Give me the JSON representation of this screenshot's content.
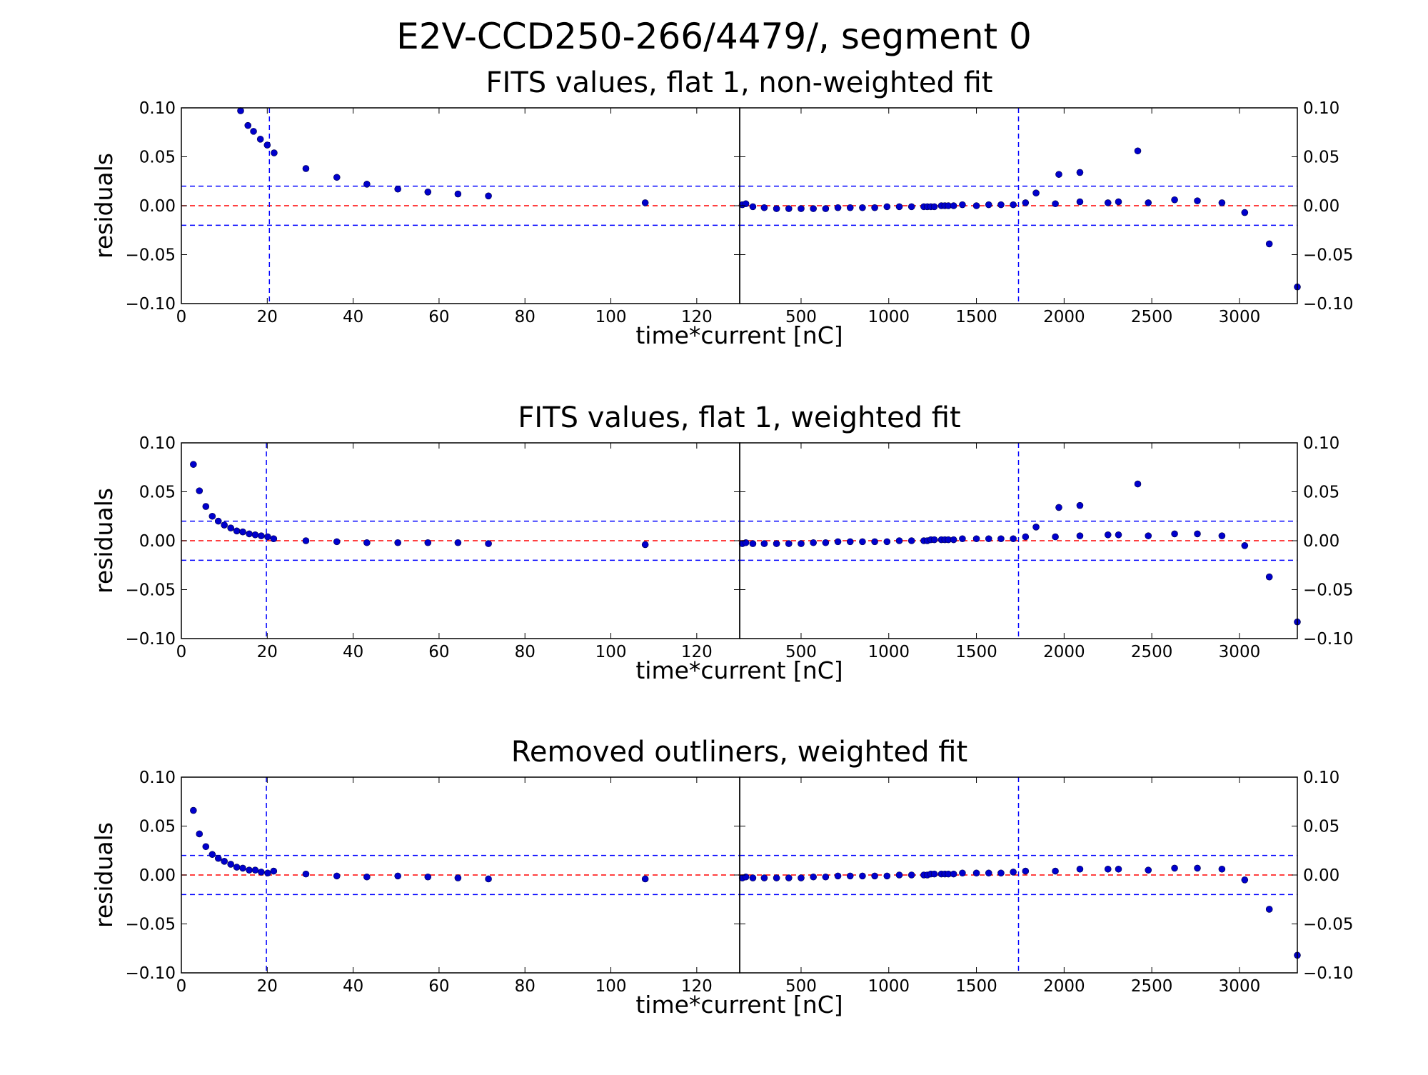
{
  "figure": {
    "title": "E2V-CCD250-266/4479/, segment 0"
  },
  "colors": {
    "points": "#0000cc",
    "zero_line": "#ff0000",
    "threshold_lines": "#0000ff",
    "axes": "#000000"
  },
  "chart_data": [
    {
      "type": "scatter",
      "title": "FITS values, flat 1, non-weighted fit",
      "xlabel": "time*current [nC]",
      "ylabel": "residuals",
      "ylim": [
        -0.1,
        0.1
      ],
      "yticks": [
        0.1,
        0.05,
        0.0,
        -0.05,
        -0.1
      ],
      "ytick_labels": [
        "0.10",
        "0.05",
        "0.00",
        "−0.05",
        "−0.10"
      ],
      "hlines": {
        "zero": 0.0,
        "upper": 0.02,
        "lower": -0.02
      },
      "left": {
        "xlim": [
          0,
          130
        ],
        "xticks": [
          0,
          20,
          40,
          60,
          80,
          100,
          120
        ],
        "xtick_labels": [
          "0",
          "20",
          "40",
          "60",
          "80",
          "100",
          "120"
        ],
        "vline": 20.5,
        "points": [
          [
            13.8,
            0.097
          ],
          [
            15.5,
            0.082
          ],
          [
            16.8,
            0.076
          ],
          [
            18.4,
            0.068
          ],
          [
            20.0,
            0.062
          ],
          [
            21.6,
            0.054
          ],
          [
            29,
            0.038
          ],
          [
            36.2,
            0.029
          ],
          [
            43.2,
            0.022
          ],
          [
            50.4,
            0.017
          ],
          [
            57.4,
            0.014
          ],
          [
            64.4,
            0.012
          ],
          [
            71.5,
            0.01
          ],
          [
            108,
            0.003
          ]
        ]
      },
      "right": {
        "xlim": [
          150,
          3330
        ],
        "xticks": [
          500,
          1000,
          1500,
          2000,
          2500,
          3000
        ],
        "xtick_labels": [
          "500",
          "1000",
          "1500",
          "2000",
          "2500",
          "3000"
        ],
        "vline": 1740,
        "points": [
          [
            165,
            0.001
          ],
          [
            185,
            0.002
          ],
          [
            225,
            -0.001
          ],
          [
            290,
            -0.002
          ],
          [
            360,
            -0.003
          ],
          [
            430,
            -0.003
          ],
          [
            500,
            -0.003
          ],
          [
            570,
            -0.003
          ],
          [
            640,
            -0.003
          ],
          [
            710,
            -0.002
          ],
          [
            780,
            -0.002
          ],
          [
            850,
            -0.002
          ],
          [
            920,
            -0.002
          ],
          [
            990,
            -0.001
          ],
          [
            1060,
            -0.001
          ],
          [
            1130,
            -0.001
          ],
          [
            1200,
            -0.001
          ],
          [
            1220,
            -0.001
          ],
          [
            1240,
            -0.001
          ],
          [
            1260,
            -0.001
          ],
          [
            1300,
            0.0
          ],
          [
            1320,
            0.0
          ],
          [
            1340,
            0.0
          ],
          [
            1370,
            0.0
          ],
          [
            1420,
            0.001
          ],
          [
            1500,
            0.0
          ],
          [
            1570,
            0.001
          ],
          [
            1640,
            0.001
          ],
          [
            1710,
            0.001
          ],
          [
            1780,
            0.003
          ],
          [
            1840,
            0.013
          ],
          [
            1950,
            0.002
          ],
          [
            1970,
            0.032
          ],
          [
            2090,
            0.004
          ],
          [
            2090,
            0.034
          ],
          [
            2250,
            0.003
          ],
          [
            2310,
            0.004
          ],
          [
            2420,
            0.056
          ],
          [
            2480,
            0.003
          ],
          [
            2630,
            0.006
          ],
          [
            2760,
            0.005
          ],
          [
            2900,
            0.003
          ],
          [
            3030,
            -0.007
          ],
          [
            3170,
            -0.039
          ],
          [
            3330,
            -0.083
          ]
        ]
      }
    },
    {
      "type": "scatter",
      "title": "FITS values, flat 1, weighted fit",
      "xlabel": "time*current [nC]",
      "ylabel": "residuals",
      "ylim": [
        -0.1,
        0.1
      ],
      "yticks": [
        0.1,
        0.05,
        0.0,
        -0.05,
        -0.1
      ],
      "ytick_labels": [
        "0.10",
        "0.05",
        "0.00",
        "−0.05",
        "−0.10"
      ],
      "hlines": {
        "zero": 0.0,
        "upper": 0.02,
        "lower": -0.02
      },
      "left": {
        "xlim": [
          0,
          130
        ],
        "xticks": [
          0,
          20,
          40,
          60,
          80,
          100,
          120
        ],
        "xtick_labels": [
          "0",
          "20",
          "40",
          "60",
          "80",
          "100",
          "120"
        ],
        "vline": 19.8,
        "points": [
          [
            2.8,
            0.078
          ],
          [
            4.2,
            0.051
          ],
          [
            5.7,
            0.035
          ],
          [
            7.2,
            0.025
          ],
          [
            8.6,
            0.02
          ],
          [
            10.0,
            0.016
          ],
          [
            11.5,
            0.013
          ],
          [
            12.9,
            0.01
          ],
          [
            14.3,
            0.009
          ],
          [
            15.8,
            0.007
          ],
          [
            17.2,
            0.006
          ],
          [
            18.6,
            0.005
          ],
          [
            20.1,
            0.004
          ],
          [
            21.5,
            0.002
          ],
          [
            29,
            0.0
          ],
          [
            36.2,
            -0.001
          ],
          [
            43.2,
            -0.002
          ],
          [
            50.4,
            -0.002
          ],
          [
            57.4,
            -0.002
          ],
          [
            64.4,
            -0.002
          ],
          [
            71.5,
            -0.003
          ],
          [
            108,
            -0.004
          ]
        ]
      },
      "right": {
        "xlim": [
          150,
          3330
        ],
        "xticks": [
          500,
          1000,
          1500,
          2000,
          2500,
          3000
        ],
        "xtick_labels": [
          "500",
          "1000",
          "1500",
          "2000",
          "2500",
          "3000"
        ],
        "vline": 1740,
        "points": [
          [
            165,
            -0.003
          ],
          [
            185,
            -0.002
          ],
          [
            225,
            -0.003
          ],
          [
            290,
            -0.003
          ],
          [
            360,
            -0.003
          ],
          [
            430,
            -0.003
          ],
          [
            500,
            -0.003
          ],
          [
            570,
            -0.002
          ],
          [
            640,
            -0.002
          ],
          [
            710,
            -0.001
          ],
          [
            780,
            -0.001
          ],
          [
            850,
            -0.001
          ],
          [
            920,
            -0.001
          ],
          [
            990,
            -0.001
          ],
          [
            1060,
            0.0
          ],
          [
            1130,
            0.0
          ],
          [
            1200,
            0.0
          ],
          [
            1220,
            0.0
          ],
          [
            1240,
            0.001
          ],
          [
            1260,
            0.001
          ],
          [
            1300,
            0.001
          ],
          [
            1320,
            0.001
          ],
          [
            1340,
            0.001
          ],
          [
            1370,
            0.001
          ],
          [
            1420,
            0.002
          ],
          [
            1500,
            0.002
          ],
          [
            1570,
            0.002
          ],
          [
            1640,
            0.002
          ],
          [
            1710,
            0.002
          ],
          [
            1780,
            0.004
          ],
          [
            1840,
            0.014
          ],
          [
            1950,
            0.004
          ],
          [
            1970,
            0.034
          ],
          [
            2090,
            0.005
          ],
          [
            2090,
            0.036
          ],
          [
            2250,
            0.006
          ],
          [
            2310,
            0.006
          ],
          [
            2420,
            0.058
          ],
          [
            2480,
            0.005
          ],
          [
            2630,
            0.007
          ],
          [
            2760,
            0.007
          ],
          [
            2900,
            0.005
          ],
          [
            3030,
            -0.005
          ],
          [
            3170,
            -0.037
          ],
          [
            3330,
            -0.083
          ]
        ]
      }
    },
    {
      "type": "scatter",
      "title": "Removed outliners, weighted fit",
      "xlabel": "time*current [nC]",
      "ylabel": "residuals",
      "ylim": [
        -0.1,
        0.1
      ],
      "yticks": [
        0.1,
        0.05,
        0.0,
        -0.05,
        -0.1
      ],
      "ytick_labels": [
        "0.10",
        "0.05",
        "0.00",
        "−0.05",
        "−0.10"
      ],
      "hlines": {
        "zero": 0.0,
        "upper": 0.02,
        "lower": -0.02
      },
      "left": {
        "xlim": [
          0,
          130
        ],
        "xticks": [
          0,
          20,
          40,
          60,
          80,
          100,
          120
        ],
        "xtick_labels": [
          "0",
          "20",
          "40",
          "60",
          "80",
          "100",
          "120"
        ],
        "vline": 19.8,
        "points": [
          [
            2.8,
            0.066
          ],
          [
            4.2,
            0.042
          ],
          [
            5.7,
            0.029
          ],
          [
            7.2,
            0.021
          ],
          [
            8.6,
            0.017
          ],
          [
            10.0,
            0.014
          ],
          [
            11.5,
            0.011
          ],
          [
            12.9,
            0.008
          ],
          [
            14.3,
            0.007
          ],
          [
            15.8,
            0.005
          ],
          [
            17.2,
            0.005
          ],
          [
            18.6,
            0.003
          ],
          [
            20.1,
            0.002
          ],
          [
            21.5,
            0.004
          ],
          [
            29,
            0.001
          ],
          [
            36.2,
            -0.001
          ],
          [
            43.2,
            -0.002
          ],
          [
            50.4,
            -0.001
          ],
          [
            57.4,
            -0.002
          ],
          [
            64.4,
            -0.003
          ],
          [
            71.5,
            -0.004
          ],
          [
            108,
            -0.004
          ]
        ]
      },
      "right": {
        "xlim": [
          150,
          3330
        ],
        "xticks": [
          500,
          1000,
          1500,
          2000,
          2500,
          3000
        ],
        "xtick_labels": [
          "500",
          "1000",
          "1500",
          "2000",
          "2500",
          "3000"
        ],
        "vline": 1740,
        "points": [
          [
            165,
            -0.003
          ],
          [
            185,
            -0.002
          ],
          [
            225,
            -0.003
          ],
          [
            290,
            -0.003
          ],
          [
            360,
            -0.003
          ],
          [
            430,
            -0.003
          ],
          [
            500,
            -0.003
          ],
          [
            570,
            -0.002
          ],
          [
            640,
            -0.002
          ],
          [
            710,
            -0.001
          ],
          [
            780,
            -0.001
          ],
          [
            850,
            -0.001
          ],
          [
            920,
            -0.001
          ],
          [
            990,
            -0.001
          ],
          [
            1060,
            0.0
          ],
          [
            1130,
            0.0
          ],
          [
            1200,
            0.0
          ],
          [
            1220,
            0.0
          ],
          [
            1240,
            0.001
          ],
          [
            1260,
            0.001
          ],
          [
            1300,
            0.001
          ],
          [
            1320,
            0.001
          ],
          [
            1340,
            0.001
          ],
          [
            1370,
            0.001
          ],
          [
            1420,
            0.002
          ],
          [
            1500,
            0.002
          ],
          [
            1570,
            0.002
          ],
          [
            1640,
            0.002
          ],
          [
            1710,
            0.003
          ],
          [
            1780,
            0.004
          ],
          [
            1950,
            0.004
          ],
          [
            2090,
            0.006
          ],
          [
            2250,
            0.006
          ],
          [
            2310,
            0.006
          ],
          [
            2480,
            0.005
          ],
          [
            2630,
            0.007
          ],
          [
            2760,
            0.007
          ],
          [
            2900,
            0.006
          ],
          [
            3030,
            -0.005
          ],
          [
            3170,
            -0.035
          ],
          [
            3330,
            -0.082
          ]
        ]
      }
    }
  ]
}
